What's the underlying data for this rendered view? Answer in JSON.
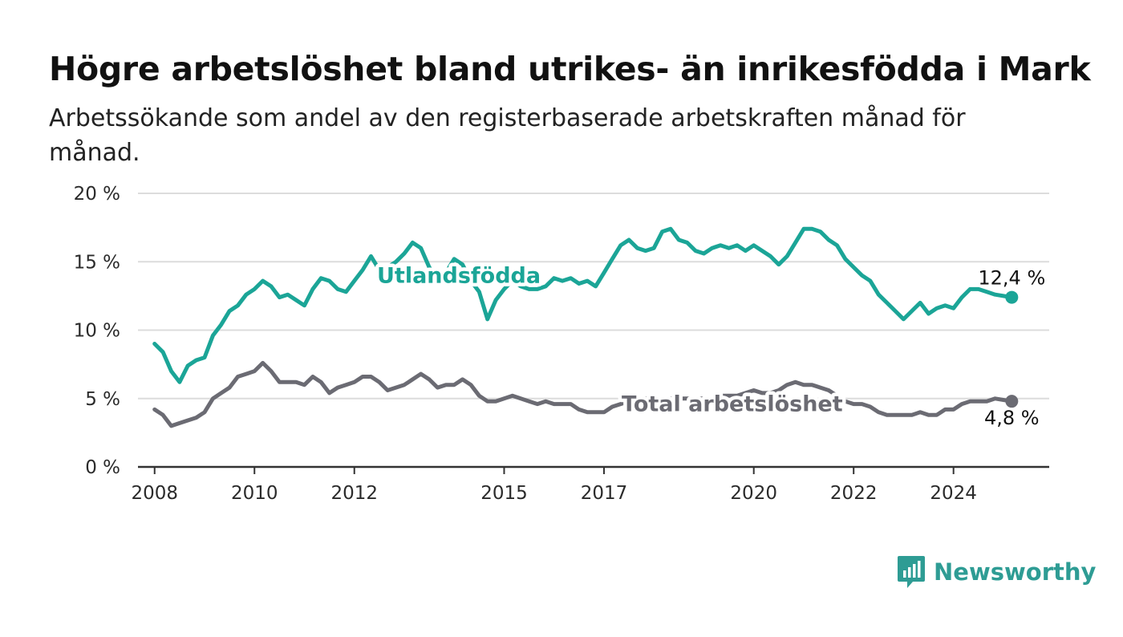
{
  "title": "Högre arbetslöshet bland utrikes- än inrikesfödda i Mark",
  "subtitle": "Arbetssökande som andel av den registerbaserade arbetskraften månad för månad.",
  "brand": {
    "name": "Newsworthy",
    "icon": "newsworthy-logo-icon",
    "color": "#2e9c94"
  },
  "chart_data": {
    "type": "line",
    "title": "Högre arbetslöshet bland utrikes- än inrikesfödda i Mark",
    "subtitle": "Arbetssökande som andel av den registerbaserade arbetskraften månad för månad.",
    "xlabel": "",
    "ylabel": "",
    "x_ticks": [
      "2008",
      "2010",
      "2012",
      "2015",
      "2017",
      "2020",
      "2022",
      "2024"
    ],
    "y_ticks": [
      "0 %",
      "5 %",
      "10 %",
      "15 %",
      "20 %"
    ],
    "y_tick_values": [
      0,
      5,
      10,
      15,
      20
    ],
    "ylim": [
      0,
      20
    ],
    "xlim": [
      "2007-09",
      "2025-12"
    ],
    "grid": true,
    "legend": "inline labels",
    "series": [
      {
        "name": "Utlandsfödda",
        "color": "#1ba597",
        "end_label": "12,4 %",
        "points": [
          [
            "2008-01",
            9.0
          ],
          [
            "2008-03",
            8.4
          ],
          [
            "2008-05",
            7.0
          ],
          [
            "2008-07",
            6.2
          ],
          [
            "2008-09",
            7.4
          ],
          [
            "2008-11",
            7.8
          ],
          [
            "2009-01",
            8.0
          ],
          [
            "2009-03",
            9.6
          ],
          [
            "2009-05",
            10.4
          ],
          [
            "2009-07",
            11.4
          ],
          [
            "2009-09",
            11.8
          ],
          [
            "2009-11",
            12.6
          ],
          [
            "2010-01",
            13.0
          ],
          [
            "2010-03",
            13.6
          ],
          [
            "2010-05",
            13.2
          ],
          [
            "2010-07",
            12.4
          ],
          [
            "2010-09",
            12.6
          ],
          [
            "2010-11",
            12.2
          ],
          [
            "2011-01",
            11.8
          ],
          [
            "2011-03",
            13.0
          ],
          [
            "2011-05",
            13.8
          ],
          [
            "2011-07",
            13.6
          ],
          [
            "2011-09",
            13.0
          ],
          [
            "2011-11",
            12.8
          ],
          [
            "2012-01",
            13.6
          ],
          [
            "2012-03",
            14.4
          ],
          [
            "2012-05",
            15.4
          ],
          [
            "2012-07",
            14.4
          ],
          [
            "2012-09",
            14.6
          ],
          [
            "2012-11",
            15.0
          ],
          [
            "2013-01",
            15.6
          ],
          [
            "2013-03",
            16.4
          ],
          [
            "2013-05",
            16.0
          ],
          [
            "2013-07",
            14.6
          ],
          [
            "2013-09",
            13.8
          ],
          [
            "2013-11",
            14.2
          ],
          [
            "2014-01",
            15.2
          ],
          [
            "2014-03",
            14.8
          ],
          [
            "2014-05",
            13.6
          ],
          [
            "2014-07",
            12.8
          ],
          [
            "2014-09",
            10.8
          ],
          [
            "2014-11",
            12.2
          ],
          [
            "2015-01",
            13.0
          ],
          [
            "2015-03",
            13.6
          ],
          [
            "2015-05",
            13.2
          ],
          [
            "2015-07",
            13.0
          ],
          [
            "2015-09",
            13.0
          ],
          [
            "2015-11",
            13.2
          ],
          [
            "2016-01",
            13.8
          ],
          [
            "2016-03",
            13.6
          ],
          [
            "2016-05",
            13.8
          ],
          [
            "2016-07",
            13.4
          ],
          [
            "2016-09",
            13.6
          ],
          [
            "2016-11",
            13.2
          ],
          [
            "2017-01",
            14.2
          ],
          [
            "2017-03",
            15.2
          ],
          [
            "2017-05",
            16.2
          ],
          [
            "2017-07",
            16.6
          ],
          [
            "2017-09",
            16.0
          ],
          [
            "2017-11",
            15.8
          ],
          [
            "2018-01",
            16.0
          ],
          [
            "2018-03",
            17.2
          ],
          [
            "2018-05",
            17.4
          ],
          [
            "2018-07",
            16.6
          ],
          [
            "2018-09",
            16.4
          ],
          [
            "2018-11",
            15.8
          ],
          [
            "2019-01",
            15.6
          ],
          [
            "2019-03",
            16.0
          ],
          [
            "2019-05",
            16.2
          ],
          [
            "2019-07",
            16.0
          ],
          [
            "2019-09",
            16.2
          ],
          [
            "2019-11",
            15.8
          ],
          [
            "2020-01",
            16.2
          ],
          [
            "2020-03",
            15.8
          ],
          [
            "2020-05",
            15.4
          ],
          [
            "2020-07",
            14.8
          ],
          [
            "2020-09",
            15.4
          ],
          [
            "2020-11",
            16.4
          ],
          [
            "2021-01",
            17.4
          ],
          [
            "2021-03",
            17.4
          ],
          [
            "2021-05",
            17.2
          ],
          [
            "2021-07",
            16.6
          ],
          [
            "2021-09",
            16.2
          ],
          [
            "2021-11",
            15.2
          ],
          [
            "2022-01",
            14.6
          ],
          [
            "2022-03",
            14.0
          ],
          [
            "2022-05",
            13.6
          ],
          [
            "2022-07",
            12.6
          ],
          [
            "2022-09",
            12.0
          ],
          [
            "2022-11",
            11.4
          ],
          [
            "2023-01",
            10.8
          ],
          [
            "2023-03",
            11.4
          ],
          [
            "2023-05",
            12.0
          ],
          [
            "2023-07",
            11.2
          ],
          [
            "2023-09",
            11.6
          ],
          [
            "2023-11",
            11.8
          ],
          [
            "2024-01",
            11.6
          ],
          [
            "2024-03",
            12.4
          ],
          [
            "2024-05",
            13.0
          ],
          [
            "2024-07",
            13.0
          ],
          [
            "2024-09",
            12.8
          ],
          [
            "2024-11",
            12.6
          ],
          [
            "2025-01",
            12.5
          ],
          [
            "2025-03",
            12.4
          ]
        ]
      },
      {
        "name": "Total arbetslöshet",
        "color": "#6b6b73",
        "end_label": "4,8 %",
        "points": [
          [
            "2008-01",
            4.2
          ],
          [
            "2008-03",
            3.8
          ],
          [
            "2008-05",
            3.0
          ],
          [
            "2008-07",
            3.2
          ],
          [
            "2008-09",
            3.4
          ],
          [
            "2008-11",
            3.6
          ],
          [
            "2009-01",
            4.0
          ],
          [
            "2009-03",
            5.0
          ],
          [
            "2009-05",
            5.4
          ],
          [
            "2009-07",
            5.8
          ],
          [
            "2009-09",
            6.6
          ],
          [
            "2009-11",
            6.8
          ],
          [
            "2010-01",
            7.0
          ],
          [
            "2010-03",
            7.6
          ],
          [
            "2010-05",
            7.0
          ],
          [
            "2010-07",
            6.2
          ],
          [
            "2010-09",
            6.2
          ],
          [
            "2010-11",
            6.2
          ],
          [
            "2011-01",
            6.0
          ],
          [
            "2011-03",
            6.6
          ],
          [
            "2011-05",
            6.2
          ],
          [
            "2011-07",
            5.4
          ],
          [
            "2011-09",
            5.8
          ],
          [
            "2011-11",
            6.0
          ],
          [
            "2012-01",
            6.2
          ],
          [
            "2012-03",
            6.6
          ],
          [
            "2012-05",
            6.6
          ],
          [
            "2012-07",
            6.2
          ],
          [
            "2012-09",
            5.6
          ],
          [
            "2012-11",
            5.8
          ],
          [
            "2013-01",
            6.0
          ],
          [
            "2013-03",
            6.4
          ],
          [
            "2013-05",
            6.8
          ],
          [
            "2013-07",
            6.4
          ],
          [
            "2013-09",
            5.8
          ],
          [
            "2013-11",
            6.0
          ],
          [
            "2014-01",
            6.0
          ],
          [
            "2014-03",
            6.4
          ],
          [
            "2014-05",
            6.0
          ],
          [
            "2014-07",
            5.2
          ],
          [
            "2014-09",
            4.8
          ],
          [
            "2014-11",
            4.8
          ],
          [
            "2015-01",
            5.0
          ],
          [
            "2015-03",
            5.2
          ],
          [
            "2015-05",
            5.0
          ],
          [
            "2015-07",
            4.8
          ],
          [
            "2015-09",
            4.6
          ],
          [
            "2015-11",
            4.8
          ],
          [
            "2016-01",
            4.6
          ],
          [
            "2016-03",
            4.6
          ],
          [
            "2016-05",
            4.6
          ],
          [
            "2016-07",
            4.2
          ],
          [
            "2016-09",
            4.0
          ],
          [
            "2016-11",
            4.0
          ],
          [
            "2017-01",
            4.0
          ],
          [
            "2017-03",
            4.4
          ],
          [
            "2017-05",
            4.6
          ],
          [
            "2017-07",
            4.8
          ],
          [
            "2017-09",
            5.0
          ],
          [
            "2017-11",
            5.0
          ],
          [
            "2018-01",
            5.0
          ],
          [
            "2018-03",
            5.0
          ],
          [
            "2018-05",
            5.0
          ],
          [
            "2018-07",
            5.0
          ],
          [
            "2018-09",
            5.0
          ],
          [
            "2018-11",
            5.0
          ],
          [
            "2019-01",
            5.0
          ],
          [
            "2019-03",
            5.0
          ],
          [
            "2019-05",
            5.2
          ],
          [
            "2019-07",
            5.2
          ],
          [
            "2019-09",
            5.2
          ],
          [
            "2019-11",
            5.4
          ],
          [
            "2020-01",
            5.6
          ],
          [
            "2020-03",
            5.4
          ],
          [
            "2020-05",
            5.4
          ],
          [
            "2020-07",
            5.6
          ],
          [
            "2020-09",
            6.0
          ],
          [
            "2020-11",
            6.2
          ],
          [
            "2021-01",
            6.0
          ],
          [
            "2021-03",
            6.0
          ],
          [
            "2021-05",
            5.8
          ],
          [
            "2021-07",
            5.6
          ],
          [
            "2021-09",
            5.2
          ],
          [
            "2021-11",
            4.8
          ],
          [
            "2022-01",
            4.6
          ],
          [
            "2022-03",
            4.6
          ],
          [
            "2022-05",
            4.4
          ],
          [
            "2022-07",
            4.0
          ],
          [
            "2022-09",
            3.8
          ],
          [
            "2022-11",
            3.8
          ],
          [
            "2023-01",
            3.8
          ],
          [
            "2023-03",
            3.8
          ],
          [
            "2023-05",
            4.0
          ],
          [
            "2023-07",
            3.8
          ],
          [
            "2023-09",
            3.8
          ],
          [
            "2023-11",
            4.2
          ],
          [
            "2024-01",
            4.2
          ],
          [
            "2024-03",
            4.6
          ],
          [
            "2024-05",
            4.8
          ],
          [
            "2024-07",
            4.8
          ],
          [
            "2024-09",
            4.8
          ],
          [
            "2024-11",
            5.0
          ],
          [
            "2025-01",
            4.9
          ],
          [
            "2025-03",
            4.8
          ]
        ]
      }
    ]
  }
}
